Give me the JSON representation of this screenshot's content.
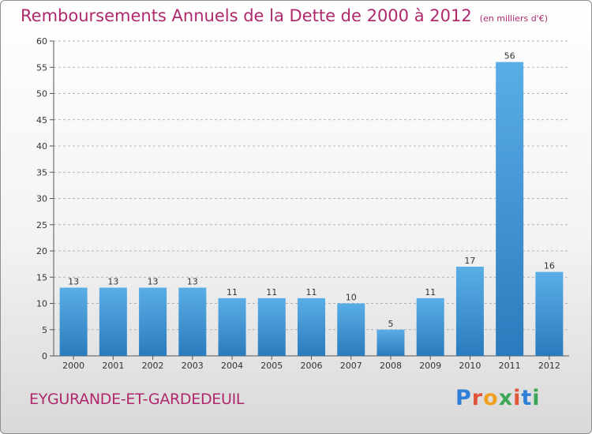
{
  "header": {
    "title": "Remboursements Annuels de la Dette de 2000 à 2012",
    "subtitle": "(en milliers d'€)"
  },
  "footer": {
    "commune": "EYGURANDE-ET-GARDEDEUIL",
    "brand": "Proxiti"
  },
  "colors": {
    "title": "#b0286c",
    "bar_top": "#5aaee6",
    "bar_bottom": "#2a7bbd",
    "grid": "#9aa0a6"
  },
  "chart_data": {
    "type": "bar",
    "categories": [
      "2000",
      "2001",
      "2002",
      "2003",
      "2004",
      "2005",
      "2006",
      "2007",
      "2008",
      "2009",
      "2010",
      "2011",
      "2012"
    ],
    "values": [
      13,
      13,
      13,
      13,
      11,
      11,
      11,
      10,
      5,
      11,
      17,
      56,
      16
    ],
    "data_labels": [
      "13",
      "13",
      "13",
      "13",
      "11",
      "11",
      "11",
      "10",
      "5",
      "11",
      "17",
      "56",
      "16"
    ],
    "ylim": [
      0,
      60
    ],
    "yticks": [
      0,
      5,
      10,
      15,
      20,
      25,
      30,
      35,
      40,
      45,
      50,
      55,
      60
    ],
    "grid": true,
    "grid_style": "dashed horizontal"
  }
}
